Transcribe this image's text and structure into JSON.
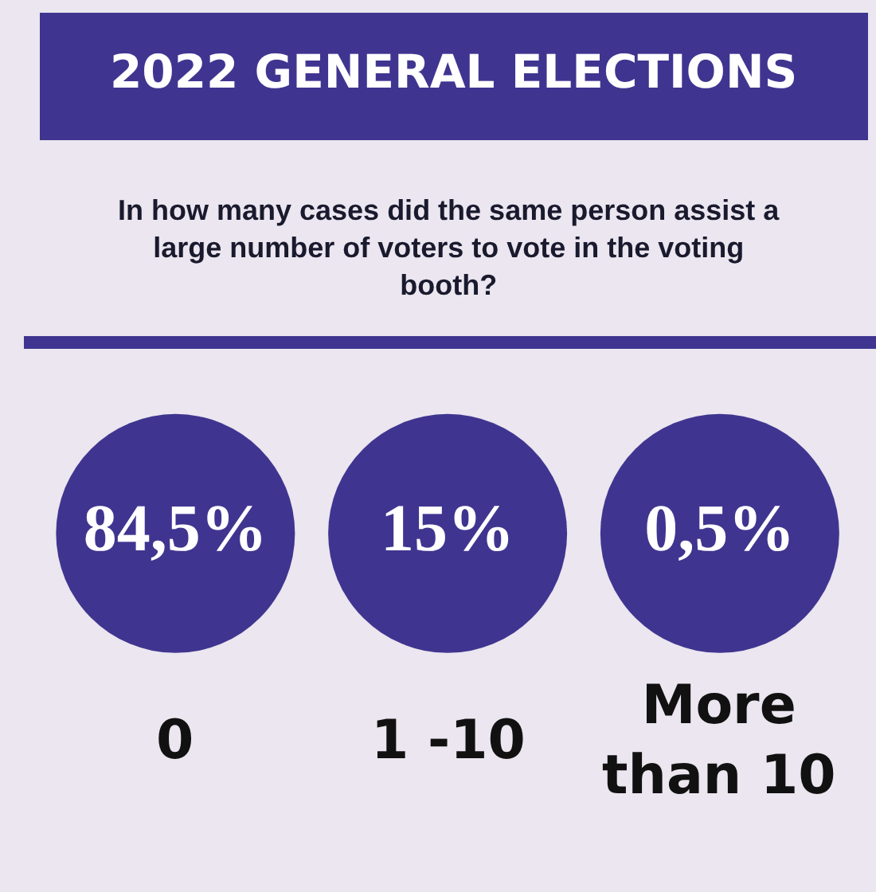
{
  "chart_data": {
    "type": "other",
    "title": "2022 GENERAL ELECTIONS",
    "subtitle": "In how many cases did the same person assist a large number of voters to vote in the voting booth?",
    "categories": [
      "0",
      "1 -10",
      "More than 10"
    ],
    "values": [
      84.5,
      15,
      0.5
    ],
    "value_labels": [
      "84,5%",
      "15%",
      "0,5%"
    ],
    "color": "#3f3590"
  }
}
